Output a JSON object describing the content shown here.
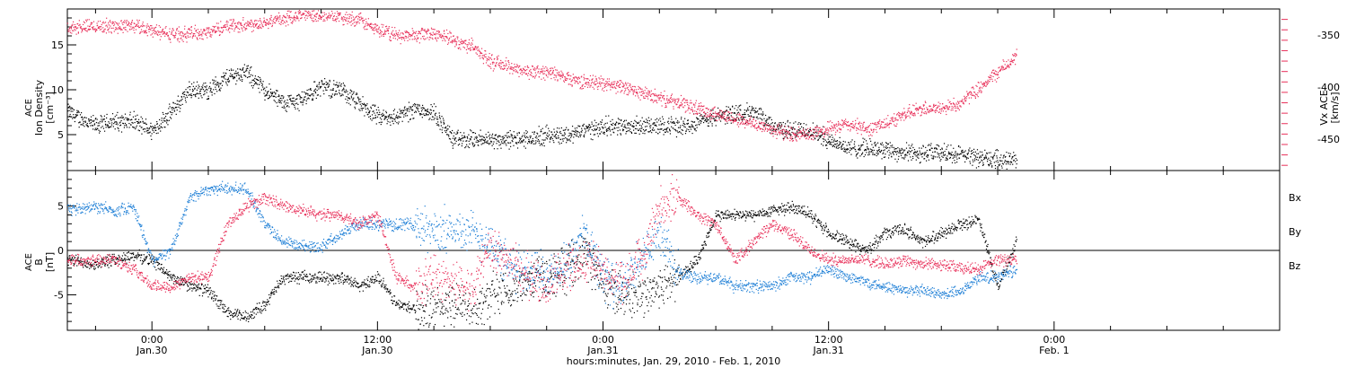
{
  "colors": {
    "black": "#000000",
    "red": "#e8305a",
    "blue": "#1e7fd6"
  },
  "chart_data": [
    {
      "type": "scatter",
      "panel": "top",
      "left_axis_label_lines": [
        "ACE",
        "Ion Density",
        "[cm⁻³]"
      ],
      "right_axis_label_lines": [
        "Vx ACE",
        "[km/s]"
      ],
      "ylim_left": [
        1,
        19
      ],
      "ylim_right": [
        -480,
        -325
      ],
      "left_ticks": [
        "5",
        "10",
        "15"
      ],
      "right_ticks": [
        "-350",
        "-400",
        "-450"
      ],
      "series": [
        {
          "color": "black",
          "axis": "left",
          "x_hours": [
            -4.5,
            -3,
            -2,
            -1,
            0,
            1,
            2,
            3,
            4,
            5,
            6,
            7,
            8,
            9,
            10,
            11,
            12,
            13,
            14,
            15,
            16,
            17,
            18,
            19,
            20,
            21,
            22,
            23,
            24,
            25,
            26,
            27,
            28,
            29,
            30,
            31,
            32,
            33,
            34,
            35,
            36,
            37,
            38,
            39,
            40,
            41,
            42,
            43,
            44,
            45,
            46
          ],
          "values": [
            7.5,
            6,
            6.5,
            6.5,
            5.5,
            7.5,
            10,
            10,
            11.5,
            12,
            10,
            8.5,
            9,
            10.5,
            10,
            8.5,
            7,
            7,
            8,
            7.5,
            4.5,
            4.5,
            4.5,
            4.5,
            4.5,
            5,
            5,
            5.5,
            6,
            6,
            6,
            6,
            6,
            6.5,
            7,
            7.5,
            7.5,
            6,
            5.5,
            5.5,
            4.5,
            3.5,
            3.5,
            3.5,
            3,
            3,
            3,
            2.8,
            2.5,
            2.2,
            2.2
          ]
        },
        {
          "color": "red",
          "axis": "right",
          "x_hours": [
            -4.5,
            -3,
            -2,
            -1,
            0,
            1,
            2,
            3,
            4,
            5,
            6,
            7,
            8,
            9,
            10,
            11,
            12,
            13,
            14,
            15,
            16,
            17,
            18,
            19,
            20,
            21,
            22,
            23,
            24,
            25,
            26,
            27,
            28,
            29,
            30,
            31,
            32,
            33,
            34,
            35,
            36,
            37,
            38,
            39,
            40,
            41,
            42,
            43,
            44,
            45,
            46
          ],
          "values": [
            -343,
            -341,
            -341,
            -340,
            -345,
            -349,
            -348,
            -347,
            -340,
            -340,
            -337,
            -334,
            -330,
            -330,
            -332,
            -335,
            -345,
            -350,
            -350,
            -347,
            -355,
            -360,
            -375,
            -380,
            -385,
            -385,
            -390,
            -395,
            -395,
            -400,
            -405,
            -410,
            -415,
            -420,
            -425,
            -430,
            -435,
            -440,
            -445,
            -445,
            -440,
            -435,
            -440,
            -435,
            -425,
            -420,
            -420,
            -415,
            -400,
            -385,
            -370
          ]
        }
      ]
    },
    {
      "type": "scatter",
      "panel": "bottom",
      "left_axis_label_lines": [
        "ACE",
        "B",
        "[nT]"
      ],
      "ylim": [
        -9,
        9
      ],
      "ticks": [
        "5",
        "0",
        "-5"
      ],
      "legend": [
        "Bx",
        "By",
        "Bz"
      ],
      "legend_position": "right",
      "series": [
        {
          "name": "Bx",
          "color": "black",
          "x_hours": [
            -4.5,
            -3,
            -2,
            -1,
            0,
            1,
            2,
            3,
            4,
            5,
            6,
            7,
            8,
            9,
            10,
            11,
            12,
            13,
            14,
            15,
            16,
            17,
            18,
            19,
            20,
            21,
            22,
            23,
            24,
            25,
            26,
            27,
            28,
            29,
            30,
            31,
            32,
            33,
            34,
            35,
            36,
            37,
            38,
            39,
            40,
            41,
            42,
            43,
            44,
            45,
            46
          ],
          "values": [
            -1,
            -1.5,
            -1,
            -0.5,
            -1,
            -3,
            -4,
            -4.5,
            -7,
            -7.5,
            -6,
            -3,
            -3,
            -3,
            -3,
            -4,
            -3,
            -6,
            -6.5,
            -6.5,
            -6,
            -7,
            -5,
            -5,
            -3,
            -3,
            -2,
            0,
            -4,
            -5,
            -5,
            -4,
            -3,
            -1,
            4,
            4,
            4,
            4.5,
            5,
            4,
            2,
            1,
            0,
            2,
            2.5,
            1,
            2,
            3,
            3.5,
            -4,
            1
          ]
        },
        {
          "name": "By",
          "color": "blue",
          "x_hours": [
            -4.5,
            -3,
            -2,
            -1,
            0,
            1,
            2,
            3,
            4,
            5,
            6,
            7,
            8,
            9,
            10,
            11,
            12,
            13,
            14,
            15,
            16,
            17,
            18,
            19,
            20,
            21,
            22,
            23,
            24,
            25,
            26,
            27,
            28,
            29,
            30,
            31,
            32,
            33,
            34,
            35,
            36,
            37,
            38,
            39,
            40,
            41,
            42,
            43,
            44,
            45,
            46
          ],
          "values": [
            4.5,
            5,
            4.5,
            5,
            -1,
            0,
            6,
            7,
            7,
            7,
            3,
            1,
            0.5,
            0.5,
            2,
            3,
            3,
            3,
            3,
            2,
            2.5,
            2,
            1,
            -2,
            -2,
            -3,
            -2,
            2,
            -3,
            -4,
            -1,
            2,
            -2.5,
            -3,
            -3,
            -4,
            -4,
            -4,
            -3,
            -3,
            -2,
            -3,
            -3.5,
            -4,
            -4.5,
            -4.5,
            -5,
            -4.5,
            -3,
            -3,
            -2
          ]
        },
        {
          "name": "Bz",
          "color": "red",
          "x_hours": [
            -4.5,
            -3,
            -2,
            -1,
            0,
            1,
            2,
            3,
            4,
            5,
            6,
            7,
            8,
            9,
            10,
            11,
            12,
            13,
            14,
            15,
            16,
            17,
            18,
            19,
            20,
            21,
            22,
            23,
            24,
            25,
            26,
            27,
            28,
            29,
            30,
            31,
            32,
            33,
            34,
            35,
            36,
            37,
            38,
            39,
            40,
            41,
            42,
            43,
            44,
            45,
            46
          ],
          "values": [
            -1,
            -1,
            -1,
            -2,
            -4,
            -4,
            -3,
            -3,
            3,
            5,
            6,
            5,
            4.5,
            4,
            4,
            3,
            4,
            -3,
            -4,
            -3,
            -3.5,
            -4,
            0,
            -1,
            -3,
            -4,
            -2,
            -1,
            -2,
            -4,
            -1,
            5,
            6,
            4,
            3,
            -1,
            1,
            3,
            2,
            0,
            -1,
            -1,
            -1,
            -1.5,
            -1,
            -1.5,
            -1.5,
            -2,
            -2,
            -1,
            -1
          ]
        }
      ]
    }
  ],
  "axis": {
    "x_range_hours": [
      -4.5,
      60
    ],
    "x_major_hours": [
      0,
      12,
      24,
      36,
      48
    ],
    "x_major_labels": [
      "0:00",
      "12:00",
      "0:00",
      "12:00",
      "0:00"
    ],
    "x_date_labels": [
      "Jan.30",
      "Jan.30",
      "Jan.31",
      "Jan.31",
      "Feb. 1"
    ],
    "x_title": "hours:minutes, Jan. 29, 2010 - Feb. 1, 2010"
  }
}
